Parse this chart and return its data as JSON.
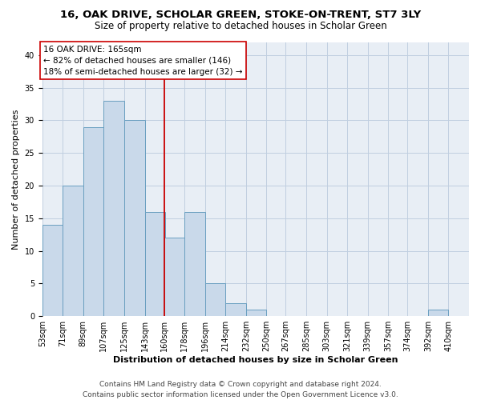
{
  "title": "16, OAK DRIVE, SCHOLAR GREEN, STOKE-ON-TRENT, ST7 3LY",
  "subtitle": "Size of property relative to detached houses in Scholar Green",
  "xlabel": "Distribution of detached houses by size in Scholar Green",
  "ylabel": "Number of detached properties",
  "bar_color": "#c9d9ea",
  "bar_edge_color": "#6a9fc0",
  "grid_color": "#c0cfe0",
  "background_color": "#e8eef5",
  "annotation_text": "16 OAK DRIVE: 165sqm\n← 82% of detached houses are smaller (146)\n18% of semi-detached houses are larger (32) →",
  "vline_color": "#cc0000",
  "categories": [
    "53sqm",
    "71sqm",
    "89sqm",
    "107sqm",
    "125sqm",
    "143sqm",
    "160sqm",
    "178sqm",
    "196sqm",
    "214sqm",
    "232sqm",
    "250sqm",
    "267sqm",
    "285sqm",
    "303sqm",
    "321sqm",
    "339sqm",
    "357sqm",
    "374sqm",
    "392sqm",
    "410sqm"
  ],
  "bin_edges": [
    53,
    71,
    89,
    107,
    125,
    143,
    160,
    178,
    196,
    214,
    232,
    250,
    267,
    285,
    303,
    321,
    339,
    357,
    374,
    392,
    410
  ],
  "bin_width": 18,
  "values": [
    14,
    20,
    29,
    33,
    30,
    16,
    12,
    16,
    5,
    2,
    1,
    0,
    0,
    0,
    0,
    0,
    0,
    0,
    0,
    1,
    0
  ],
  "ylim": [
    0,
    42
  ],
  "yticks": [
    0,
    5,
    10,
    15,
    20,
    25,
    30,
    35,
    40
  ],
  "xlim_left": 53,
  "xlim_right": 428,
  "vline_x": 160,
  "footnote": "Contains HM Land Registry data © Crown copyright and database right 2024.\nContains public sector information licensed under the Open Government Licence v3.0.",
  "title_fontsize": 9.5,
  "subtitle_fontsize": 8.5,
  "xlabel_fontsize": 8,
  "ylabel_fontsize": 8,
  "tick_fontsize": 7,
  "annotation_fontsize": 7.5,
  "footnote_fontsize": 6.5
}
